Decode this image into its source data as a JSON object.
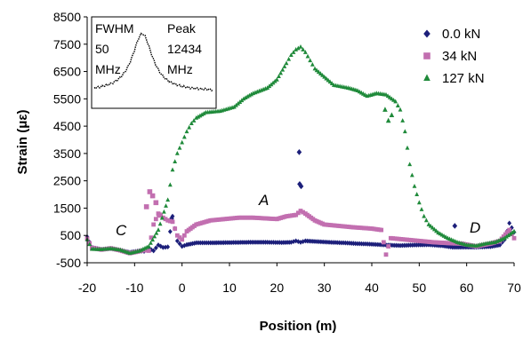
{
  "chart_data": {
    "type": "scatter",
    "xlabel": "Position (m)",
    "ylabel": "Strain (με)",
    "xlim": [
      -20,
      70
    ],
    "ylim": [
      -500,
      8500
    ],
    "xticks": [
      "-20",
      "-10",
      "0",
      "10",
      "20",
      "30",
      "40",
      "50",
      "60",
      "70"
    ],
    "yticks": [
      "-500",
      "500",
      "1500",
      "2500",
      "3500",
      "4500",
      "5500",
      "6500",
      "7500",
      "8500"
    ],
    "grid": false,
    "legend_position": "top-right",
    "series": [
      {
        "name": "0.0 kN",
        "color": "#1c1f7a",
        "marker": "diamond",
        "points": [
          [
            -20,
            450
          ],
          [
            -19,
            60
          ],
          [
            -17,
            -10
          ],
          [
            -15,
            20
          ],
          [
            -13,
            -40
          ],
          [
            -11,
            -120
          ],
          [
            -9,
            -60
          ],
          [
            -8,
            -80
          ],
          [
            -7,
            20
          ],
          [
            -6,
            -60
          ],
          [
            -5,
            150
          ],
          [
            -4,
            60
          ],
          [
            -3,
            80
          ],
          [
            -2,
            1200
          ],
          [
            -1,
            300
          ],
          [
            0,
            100
          ],
          [
            1,
            160
          ],
          [
            3,
            230
          ],
          [
            6,
            230
          ],
          [
            10,
            240
          ],
          [
            14,
            250
          ],
          [
            18,
            250
          ],
          [
            21,
            240
          ],
          [
            23,
            250
          ],
          [
            24,
            300
          ],
          [
            25,
            250
          ],
          [
            26,
            300
          ],
          [
            28,
            280
          ],
          [
            31,
            250
          ],
          [
            34,
            230
          ],
          [
            37,
            200
          ],
          [
            40,
            180
          ],
          [
            43,
            150
          ],
          [
            46,
            130
          ],
          [
            49,
            150
          ],
          [
            52,
            160
          ],
          [
            55,
            120
          ],
          [
            57,
            70
          ],
          [
            59,
            70
          ],
          [
            62,
            70
          ],
          [
            65,
            90
          ],
          [
            67,
            150
          ],
          [
            68,
            350
          ],
          [
            69,
            950
          ],
          [
            70,
            620
          ]
        ],
        "outliers": [
          [
            24.7,
            3550
          ],
          [
            24.8,
            2380
          ],
          [
            25.1,
            2300
          ],
          [
            57.5,
            850
          ],
          [
            -2.2,
            1120
          ]
        ]
      },
      {
        "name": "34 kN",
        "color": "#c26fb0",
        "marker": "square",
        "points": [
          [
            -20,
            380
          ],
          [
            -19,
            50
          ],
          [
            -17,
            -20
          ],
          [
            -15,
            30
          ],
          [
            -13,
            -50
          ],
          [
            -11,
            -150
          ],
          [
            -9,
            -80
          ],
          [
            -8,
            -40
          ],
          [
            -7,
            -60
          ],
          [
            -6,
            900
          ],
          [
            -5,
            1300
          ],
          [
            -4,
            1150
          ],
          [
            -3,
            1050
          ],
          [
            -2,
            1000
          ],
          [
            -1,
            500
          ],
          [
            0,
            350
          ],
          [
            1,
            650
          ],
          [
            3,
            900
          ],
          [
            6,
            1050
          ],
          [
            9,
            1100
          ],
          [
            12,
            1150
          ],
          [
            15,
            1150
          ],
          [
            18,
            1120
          ],
          [
            20,
            1100
          ],
          [
            22,
            1200
          ],
          [
            24,
            1250
          ],
          [
            25,
            1400
          ],
          [
            26,
            1300
          ],
          [
            28,
            1050
          ],
          [
            30,
            900
          ],
          [
            33,
            850
          ],
          [
            36,
            800
          ],
          [
            40,
            750
          ],
          [
            42,
            700
          ],
          [
            43,
            -200
          ],
          [
            44,
            400
          ],
          [
            47,
            350
          ],
          [
            50,
            300
          ],
          [
            53,
            250
          ],
          [
            56,
            220
          ],
          [
            59,
            200
          ],
          [
            62,
            100
          ],
          [
            65,
            200
          ],
          [
            67,
            300
          ],
          [
            69,
            700
          ],
          [
            70,
            400
          ]
        ],
        "outliers": [
          [
            -7.5,
            1550
          ],
          [
            -6.8,
            2100
          ],
          [
            -6.2,
            1950
          ],
          [
            -4.8,
            1250
          ],
          [
            -5.5,
            1700
          ]
        ]
      },
      {
        "name": "127 kN",
        "color": "#1f8a3a",
        "marker": "triangle",
        "points": [
          [
            -20,
            350
          ],
          [
            -19,
            0
          ],
          [
            -17,
            -10
          ],
          [
            -15,
            20
          ],
          [
            -13,
            -30
          ],
          [
            -11,
            -150
          ],
          [
            -9,
            -70
          ],
          [
            -7,
            100
          ],
          [
            -5,
            700
          ],
          [
            -3,
            1800
          ],
          [
            -2,
            2900
          ],
          [
            -1,
            3500
          ],
          [
            0,
            3900
          ],
          [
            1,
            4300
          ],
          [
            2,
            4600
          ],
          [
            3,
            4800
          ],
          [
            5,
            5000
          ],
          [
            8,
            5050
          ],
          [
            11,
            5200
          ],
          [
            13,
            5500
          ],
          [
            15,
            5700
          ],
          [
            18,
            5900
          ],
          [
            20,
            6200
          ],
          [
            22,
            6800
          ],
          [
            23,
            7100
          ],
          [
            24,
            7300
          ],
          [
            25,
            7400
          ],
          [
            26,
            7200
          ],
          [
            27,
            6900
          ],
          [
            28,
            6600
          ],
          [
            30,
            6300
          ],
          [
            32,
            6000
          ],
          [
            35,
            5900
          ],
          [
            37,
            5800
          ],
          [
            39,
            5600
          ],
          [
            41,
            5700
          ],
          [
            43,
            5650
          ],
          [
            45,
            5400
          ],
          [
            46,
            5100
          ],
          [
            47,
            4300
          ],
          [
            48,
            3100
          ],
          [
            49,
            2300
          ],
          [
            50,
            1700
          ],
          [
            51,
            1200
          ],
          [
            52,
            900
          ],
          [
            54,
            600
          ],
          [
            56,
            400
          ],
          [
            58,
            250
          ],
          [
            60,
            150
          ],
          [
            62,
            120
          ],
          [
            64,
            200
          ],
          [
            66,
            250
          ],
          [
            68,
            400
          ],
          [
            70,
            650
          ]
        ],
        "outliers": [
          [
            43.5,
            4700
          ],
          [
            42.8,
            5100
          ],
          [
            44.2,
            4900
          ]
        ]
      }
    ],
    "annotations": [
      "A",
      "C",
      "D"
    ],
    "inset": {
      "left_label_1": "FWHM",
      "left_label_2": "50",
      "left_label_3": "MHz",
      "right_label_1": "Peak",
      "right_label_2": "12434",
      "right_label_3": "MHz"
    }
  }
}
